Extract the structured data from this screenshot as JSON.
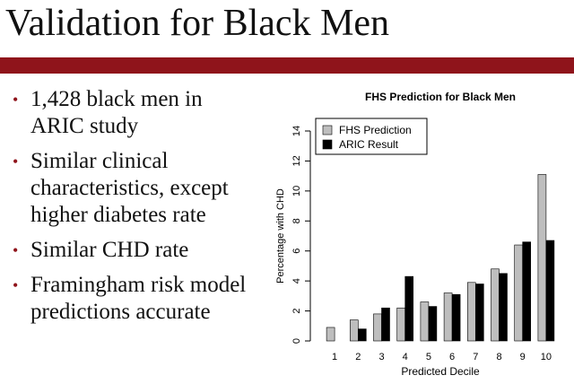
{
  "slide": {
    "title": "Validation for Black Men",
    "bullets": [
      {
        "text": "1,428 black men in ARIC study"
      },
      {
        "text": "Similar clinical characteristics, except higher diabetes rate"
      },
      {
        "text": "Similar CHD rate"
      },
      {
        "text": "Framingham risk model predictions accurate"
      }
    ],
    "colors": {
      "accent": "#8f141b"
    }
  },
  "chart_data": {
    "type": "bar",
    "title": "FHS Prediction for Black Men",
    "xlabel": "Predicted Decile",
    "ylabel": "Percentage with CHD",
    "categories": [
      "1",
      "2",
      "3",
      "4",
      "5",
      "6",
      "7",
      "8",
      "9",
      "10"
    ],
    "ylim": [
      0,
      14
    ],
    "yticks": [
      "0",
      "2",
      "4",
      "6",
      "8",
      "10",
      "12",
      "14"
    ],
    "series": [
      {
        "name": "FHS Prediction",
        "color": "#bebebe",
        "values": [
          0.9,
          1.4,
          1.8,
          2.2,
          2.6,
          3.2,
          3.9,
          4.8,
          6.4,
          11.1
        ]
      },
      {
        "name": "ARIC Result",
        "color": "#000000",
        "values": [
          0.0,
          0.8,
          2.2,
          4.3,
          2.3,
          3.1,
          3.8,
          4.5,
          6.6,
          6.7
        ]
      }
    ],
    "legend_position": "top-left",
    "grid": false
  }
}
